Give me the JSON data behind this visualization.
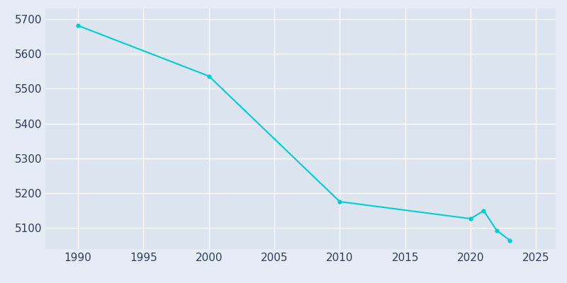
{
  "years": [
    1990,
    2000,
    2010,
    2020,
    2021,
    2022,
    2023
  ],
  "population": [
    5681,
    5536,
    5176,
    5127,
    5150,
    5093,
    5065
  ],
  "line_color": "#00CED1",
  "bg_color": "#e6ecf5",
  "plot_bg_color": "#dce4f0",
  "text_color": "#2e3e5a",
  "xlim": [
    1987.5,
    2026.5
  ],
  "ylim": [
    5040,
    5730
  ],
  "xticks": [
    1990,
    1995,
    2000,
    2005,
    2010,
    2015,
    2020,
    2025
  ],
  "yticks": [
    5100,
    5200,
    5300,
    5400,
    5500,
    5600,
    5700
  ],
  "linewidth": 1.5,
  "marker": "o",
  "markersize": 3.5
}
